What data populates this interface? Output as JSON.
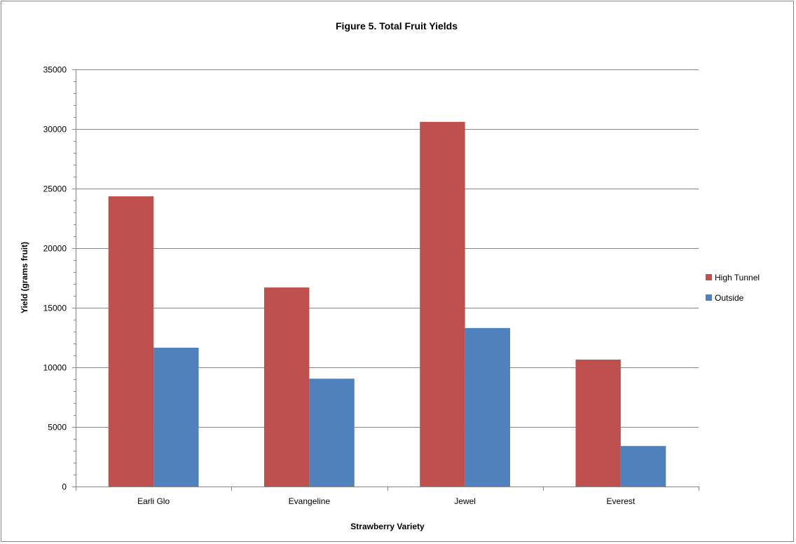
{
  "chart_data": {
    "type": "bar",
    "title": "Figure 5.  Total Fruit Yields",
    "xlabel": "Strawberry Variety",
    "ylabel": "Yield (grams fruit)",
    "categories": [
      "Earli Glo",
      "Evangeline",
      "Jewel",
      "Everest"
    ],
    "series": [
      {
        "name": "High Tunnel",
        "color": "#C0504D",
        "values": [
          24350,
          16700,
          30600,
          10650
        ]
      },
      {
        "name": "Outside",
        "color": "#4F81BD",
        "values": [
          11650,
          9050,
          13300,
          3400
        ]
      }
    ],
    "ylim": [
      0,
      35000
    ],
    "yticks": [
      0,
      5000,
      10000,
      15000,
      20000,
      25000,
      30000,
      35000
    ],
    "grid": true,
    "legend_position": "right"
  }
}
